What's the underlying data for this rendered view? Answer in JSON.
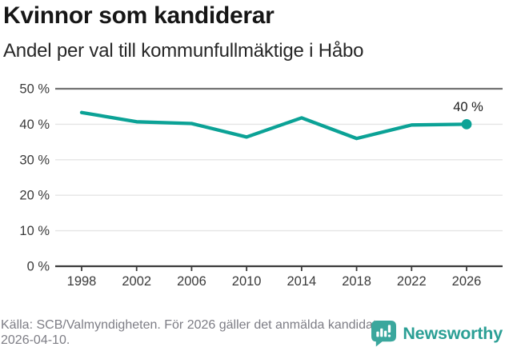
{
  "header": {
    "title": "Kvinnor som kandiderar",
    "subtitle": "Andel per val till kommunfullmäktige i Håbo"
  },
  "chart_data": {
    "type": "line",
    "title": "Kvinnor som kandiderar",
    "subtitle": "Andel per val till kommunfullmäktige i Håbo",
    "categories": [
      "1998",
      "2002",
      "2006",
      "2010",
      "2014",
      "2018",
      "2022",
      "2026"
    ],
    "values": [
      43.3,
      40.7,
      40.2,
      36.4,
      41.8,
      36.0,
      39.8,
      40.0
    ],
    "unit": "%",
    "xlabel": "",
    "ylabel": "",
    "ylim": [
      0,
      50
    ],
    "y_ticks": [
      0,
      10,
      20,
      30,
      40,
      50
    ],
    "y_tick_labels": [
      "0 %",
      "10 %",
      "20 %",
      "30 %",
      "40 %",
      "50 %"
    ],
    "end_label": "40 %",
    "line_color": "#0ba296",
    "grid": true,
    "legend": "none"
  },
  "footer": {
    "source": "Källa: SCB/Valmyndigheten. För 2026 gäller det anmälda kandidater 2026-04-10.",
    "logo_text": "Newsworthy"
  },
  "colors": {
    "accent": "#0ba296",
    "logo_icon": "#3aa79d",
    "logo_text": "#2b9f95"
  }
}
